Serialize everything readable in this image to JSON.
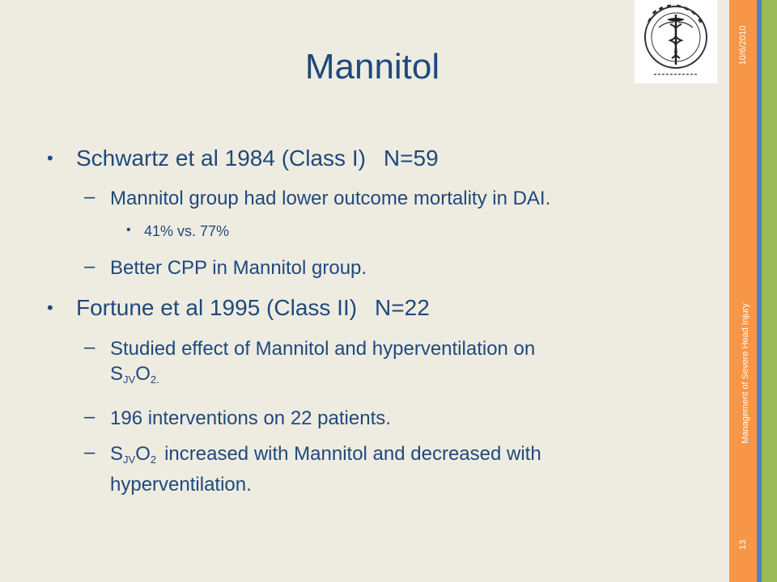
{
  "slide": {
    "title": "Mannitol",
    "date": "10/6/2010",
    "footer": "Management of Severe Head Injury",
    "page_number": "13",
    "logo_icon": "caduceus-seal-icon"
  },
  "bullets": {
    "b1": {
      "text": "Schwartz et al 1984 (Class I)",
      "n": "N=59",
      "s1": "Mannitol group had lower outcome mortality in DAI.",
      "s1a": "41% vs. 77%",
      "s2": "Better CPP in Mannitol group."
    },
    "b2": {
      "text": "Fortune et al 1995 (Class II)",
      "n": "N=22",
      "s1_line1": "Studied effect of Mannitol and hyperventilation on",
      "s1_s": "S",
      "s1_sub": "JV",
      "s1_o": "O",
      "s1_sub2": "2.",
      "s2": "196 interventions on 22 patients.",
      "s3_s": "S",
      "s3_sub": "JV",
      "s3_o": "O",
      "s3_sub2": "2",
      "s3_rest": "increased with Mannitol and decreased with",
      "s3_line2": "hyperventilation."
    }
  }
}
